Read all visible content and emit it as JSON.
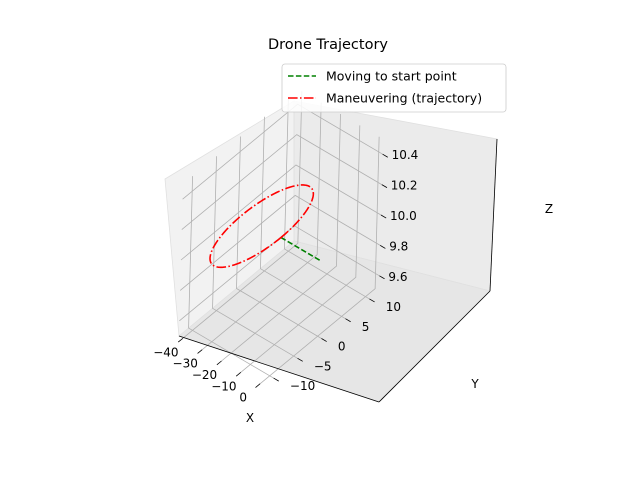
{
  "chart_data": {
    "type": "line3d",
    "title": "Drone Trajectory",
    "xlabel": "X",
    "ylabel": "Y",
    "zlabel": "Z",
    "x_ticks": [
      "−40",
      "−30",
      "−20",
      "−10",
      "0"
    ],
    "y_ticks": [
      "−10",
      "−5",
      "0",
      "5",
      "10"
    ],
    "z_ticks": [
      "9.6",
      "9.8",
      "10.0",
      "10.2",
      "10.4"
    ],
    "xlim": [
      -42,
      2
    ],
    "ylim": [
      -12,
      12
    ],
    "zlim": [
      9.5,
      10.5
    ],
    "grid": true,
    "legend_position": "upper-right",
    "series": [
      {
        "name": "Moving to start point",
        "color": "#008000",
        "linestyle": "dashed",
        "points": [
          [
            0,
            0,
            10
          ],
          [
            -20,
            0,
            10
          ]
        ]
      },
      {
        "name": "Maneuvering (trajectory)",
        "color": "#ff0000",
        "linestyle": "dashdot",
        "shape": "circle",
        "center": [
          -30,
          0,
          10
        ],
        "radius": 10
      }
    ]
  }
}
